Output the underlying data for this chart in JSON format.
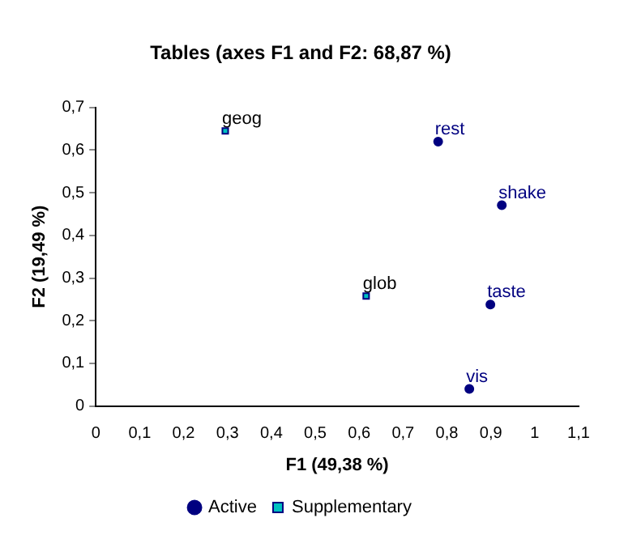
{
  "chart_data": {
    "type": "scatter",
    "title": "Tables (axes F1 and F2: 68,87 %)",
    "xlabel": "F1 (49,38 %)",
    "ylabel": "F2 (19,49 %)",
    "series": [
      {
        "name": "Active",
        "color": "#000080",
        "marker": "circle",
        "x": [
          0.78,
          0.925,
          0.899,
          0.851
        ],
        "values": [
          0.62,
          0.471,
          0.238,
          0.04
        ]
      },
      {
        "name": "Supplementary",
        "color": "#00c0c0",
        "marker": "square",
        "x": [
          0.295,
          0.616
        ],
        "values": [
          0.645,
          0.258
        ]
      }
    ],
    "annotations": [
      {
        "text": "rest",
        "x": 0.78,
        "y": 0.62
      },
      {
        "text": "shake",
        "x": 0.925,
        "y": 0.471
      },
      {
        "text": "taste",
        "x": 0.899,
        "y": 0.238
      },
      {
        "text": "vis",
        "x": 0.851,
        "y": 0.04
      },
      {
        "text": "geog",
        "x": 0.295,
        "y": 0.645
      },
      {
        "text": "glob",
        "x": 0.616,
        "y": 0.258
      }
    ],
    "xlim": [
      0,
      1.1
    ],
    "xticks": [
      0,
      {
        "value": 0.1,
        "label": "0,1"
      },
      {
        "value": 0.2,
        "label": "0,2"
      },
      {
        "value": 0.3,
        "label": "0,3"
      },
      {
        "value": 0.4,
        "label": "0,4"
      },
      {
        "value": 0.5,
        "label": "0,5"
      },
      {
        "value": 0.6,
        "label": "0,6"
      },
      {
        "value": 0.7,
        "label": "0,7"
      },
      {
        "value": 0.8,
        "label": "0,8"
      },
      {
        "value": 0.9,
        "label": "0,9"
      },
      1,
      {
        "value": 1.1,
        "label": "1,1"
      }
    ],
    "ylim": [
      0,
      0.7
    ],
    "yticks": [
      0,
      {
        "value": 0.1,
        "label": "0,1"
      },
      {
        "value": 0.2,
        "label": "0,2"
      },
      {
        "value": 0.3,
        "label": "0,3"
      },
      {
        "value": 0.4,
        "label": "0,4"
      },
      {
        "value": 0.5,
        "label": "0,5"
      },
      {
        "value": 0.6,
        "label": "0,6"
      },
      {
        "value": 0.7,
        "label": "0,7"
      }
    ],
    "grid": false,
    "legend": "bottom"
  }
}
